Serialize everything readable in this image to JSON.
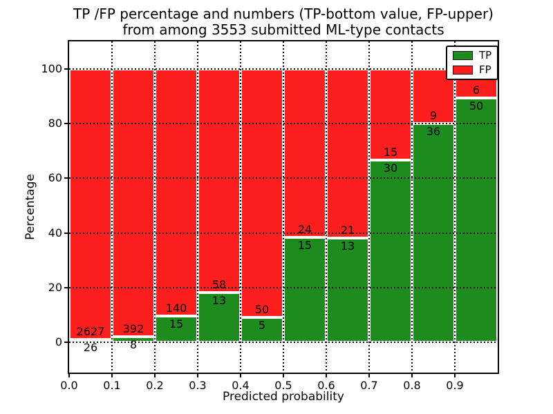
{
  "header": {
    "title_line1": "TP /FP percentage and numbers (TP-bottom value, FP-upper)",
    "title_line2": "from among 3553 submitted ML-type contacts"
  },
  "chart_data": {
    "type": "bar",
    "stacked": true,
    "title": "TP /FP percentage and numbers (TP-bottom value, FP-upper) from among 3553 submitted ML-type contacts",
    "xlabel": "Predicted probability",
    "ylabel": "Percentage",
    "total_submitted": 3553,
    "bin_edges": [
      0.0,
      0.1,
      0.2,
      0.3,
      0.4,
      0.5,
      0.6,
      0.7,
      0.8,
      0.9,
      1.0
    ],
    "categories": [
      "0.0",
      "0.1",
      "0.2",
      "0.3",
      "0.4",
      "0.5",
      "0.6",
      "0.7",
      "0.8",
      "0.9"
    ],
    "series": [
      {
        "name": "TP",
        "color": "#1e8b1e",
        "counts": [
          26,
          8,
          15,
          13,
          5,
          15,
          13,
          30,
          36,
          50
        ]
      },
      {
        "name": "FP",
        "color": "#fd1e1e",
        "counts": [
          2627,
          392,
          140,
          58,
          50,
          24,
          21,
          15,
          9,
          6
        ]
      }
    ],
    "tp_percent": [
      0.98,
      2.0,
      9.68,
      18.31,
      9.09,
      38.46,
      38.24,
      66.67,
      80.0,
      89.29
    ],
    "xlim": [
      0.0,
      1.0
    ],
    "ylim": [
      -11,
      110
    ],
    "xticks": [
      "0.0",
      "0.1",
      "0.2",
      "0.3",
      "0.4",
      "0.5",
      "0.6",
      "0.7",
      "0.8",
      "0.9"
    ],
    "yticks": [
      0,
      20,
      40,
      60,
      80,
      100
    ],
    "grid": "dotted",
    "bar_edge_color": "#ffffff",
    "legend": {
      "position": "upper right",
      "entries": [
        {
          "label": "TP",
          "color": "#1e8b1e"
        },
        {
          "label": "FP",
          "color": "#fd1e1e"
        }
      ]
    }
  }
}
